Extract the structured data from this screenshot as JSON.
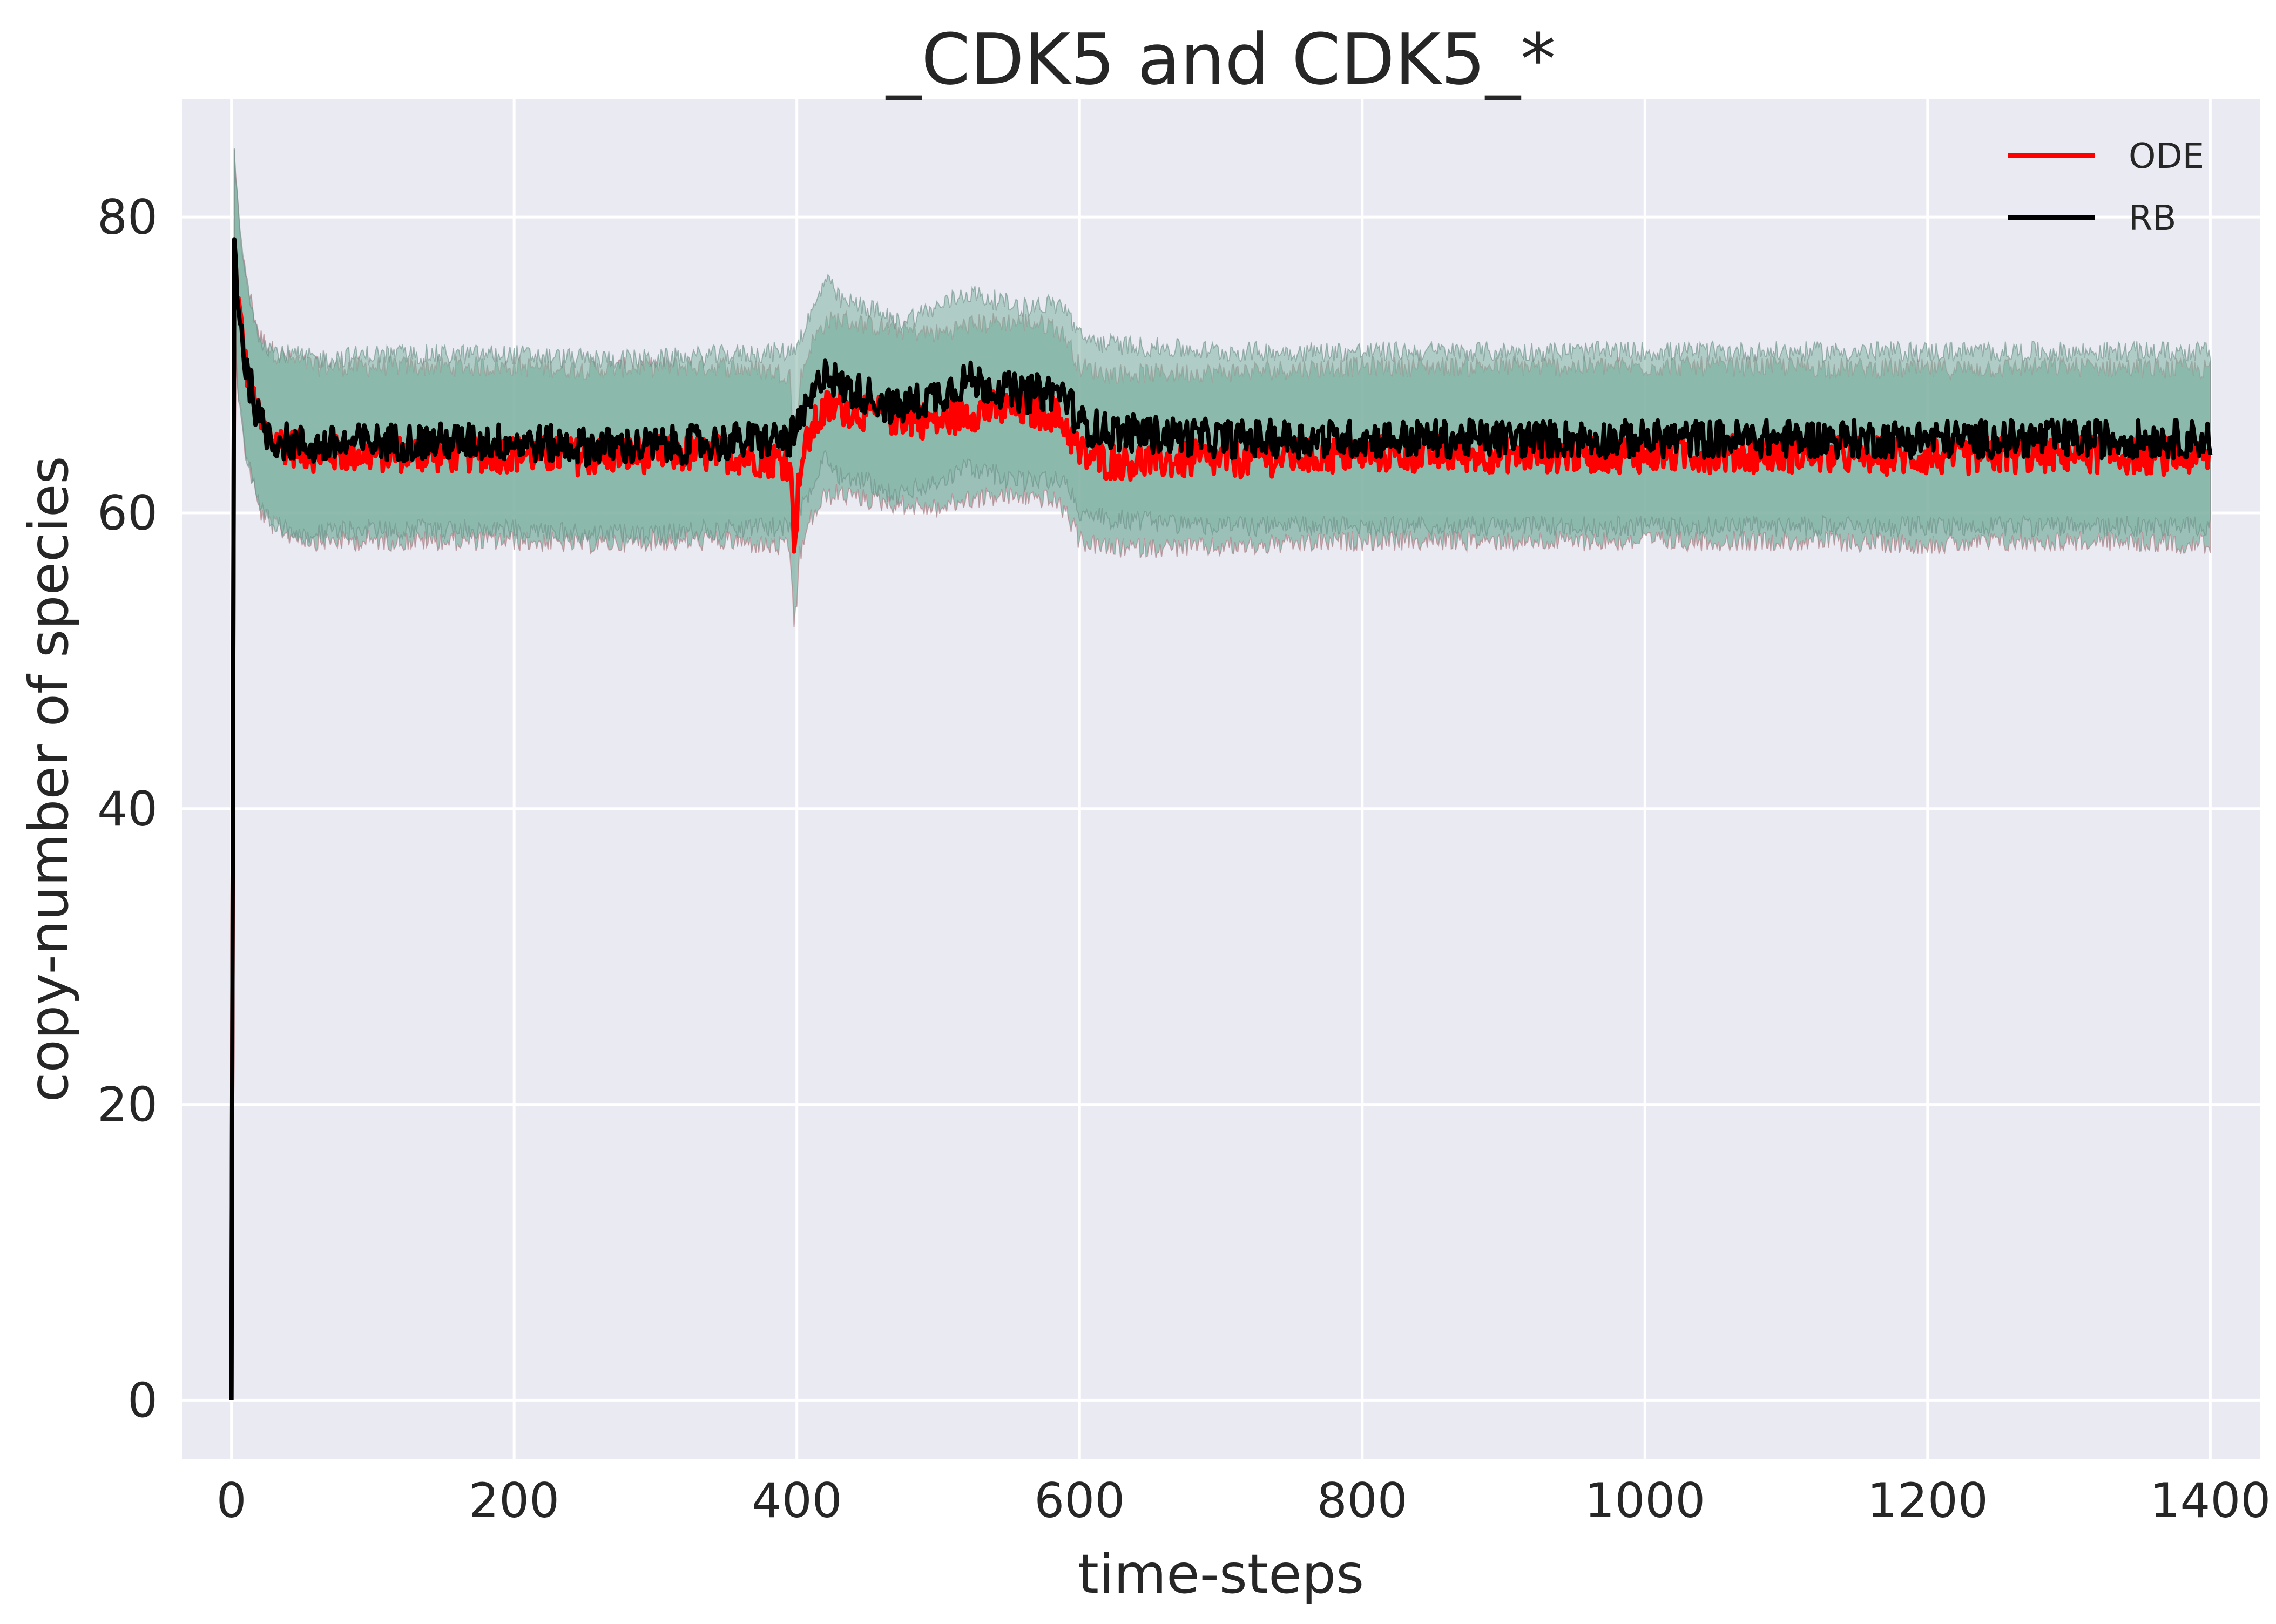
{
  "chart_data": {
    "type": "line",
    "title": "_CDK5 and CDK5_*",
    "xlabel": "time-steps",
    "ylabel": "copy-number of species",
    "xlim": [
      -35,
      1435
    ],
    "ylim": [
      -4,
      88
    ],
    "xticks": [
      0,
      200,
      400,
      600,
      800,
      1000,
      1200,
      1400
    ],
    "yticks": [
      0,
      20,
      40,
      60,
      80
    ],
    "xtick_labels": [
      "0",
      "200",
      "400",
      "600",
      "800",
      "1000",
      "1200",
      "1400"
    ],
    "ytick_labels": [
      "0",
      "20",
      "40",
      "60",
      "80"
    ],
    "grid": true,
    "legend_position": "top-right",
    "background_color": "#eaeaf2",
    "band_color": "#7fb2a3",
    "series": [
      {
        "name": "ODE",
        "color": "#ff0000",
        "x": [
          0,
          2,
          5,
          10,
          15,
          20,
          30,
          40,
          60,
          100,
          150,
          200,
          250,
          300,
          350,
          395,
          398,
          400,
          402,
          410,
          420,
          430,
          450,
          470,
          500,
          520,
          540,
          560,
          580,
          590,
          600,
          620,
          700,
          800,
          900,
          1000,
          1100,
          1200,
          1300,
          1400
        ],
        "y": [
          0,
          78,
          74,
          70,
          68,
          66,
          65,
          64.5,
          64,
          64,
          64,
          64,
          63.8,
          64,
          64,
          63.5,
          58.5,
          60,
          63,
          65.5,
          67,
          67.2,
          66.8,
          66.5,
          66.2,
          66.8,
          67,
          67,
          66.8,
          66,
          64,
          63.5,
          63.6,
          64,
          64,
          64,
          64,
          63.8,
          64,
          63.8
        ]
      },
      {
        "name": "RB",
        "color": "#000000",
        "x": [
          0,
          2,
          5,
          10,
          15,
          20,
          30,
          40,
          60,
          100,
          150,
          200,
          250,
          300,
          350,
          395,
          400,
          405,
          415,
          420,
          430,
          450,
          470,
          500,
          520,
          540,
          560,
          580,
          590,
          600,
          620,
          700,
          800,
          900,
          1000,
          1100,
          1200,
          1300,
          1400
        ],
        "y": [
          0,
          78.5,
          74,
          70,
          68,
          66,
          65,
          64.8,
          64.5,
          64.8,
          64.8,
          64.8,
          64.5,
          64.5,
          64.8,
          65,
          65.5,
          66.5,
          68.5,
          70,
          68.5,
          68,
          67,
          68,
          69,
          68.5,
          68,
          68.2,
          68,
          66,
          65.5,
          65,
          65,
          65,
          65,
          65,
          65,
          65,
          65
        ]
      }
    ]
  },
  "legend": [
    {
      "label": "ODE",
      "color": "#ff0000"
    },
    {
      "label": "RB",
      "color": "#000000"
    }
  ]
}
